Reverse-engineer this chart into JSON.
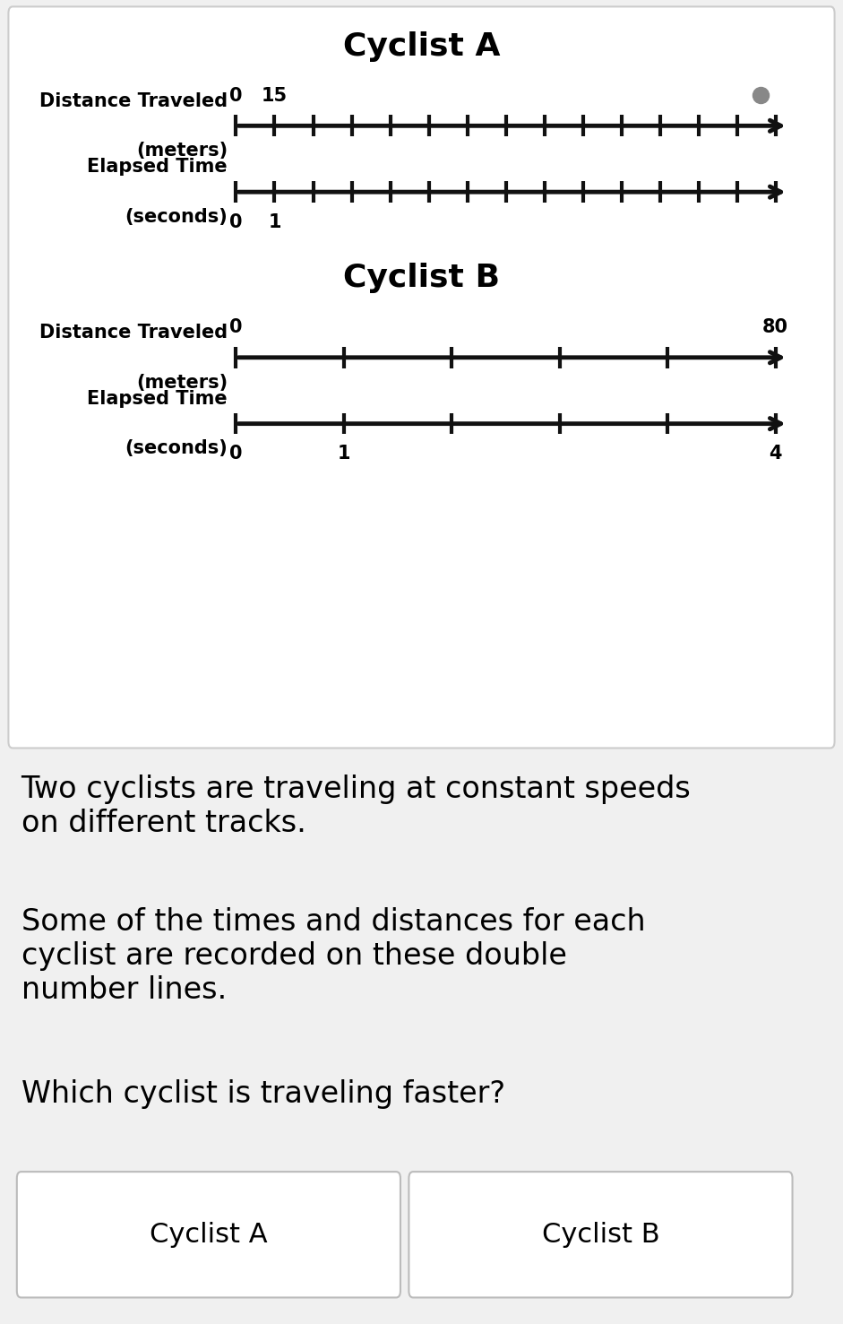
{
  "background_color": "#f0f0f0",
  "panel_bg": "#ffffff",
  "panel_border": "#cccccc",
  "title_A": "Cyclist A",
  "title_B": "Cyclist B",
  "title_fontsize": 26,
  "title_fontweight": "bold",
  "label_fontsize": 15,
  "label_fontweight": "bold",
  "tick_label_fontsize": 15,
  "tick_label_fontweight": "bold",
  "number_line_color": "#111111",
  "number_line_lw": 3.5,
  "tick_lw": 3.0,
  "A_dist_ticks": 14,
  "A_time_ticks": 14,
  "A_dot_color": "#888888",
  "A_dot_size": 150,
  "B_dist_ticks": 5,
  "B_time_ticks": 5,
  "text1": "Two cyclists are traveling at constant speeds\non different tracks.",
  "text2": "Some of the times and distances for each\ncyclist are recorded on these double\nnumber lines.",
  "text3": "Which cyclist is traveling faster?",
  "text_fontsize": 24,
  "button_label_A": "Cyclist A",
  "button_label_B": "Cyclist B",
  "button_fontsize": 22,
  "button_color": "#ffffff",
  "button_border": "#bbbbbb"
}
